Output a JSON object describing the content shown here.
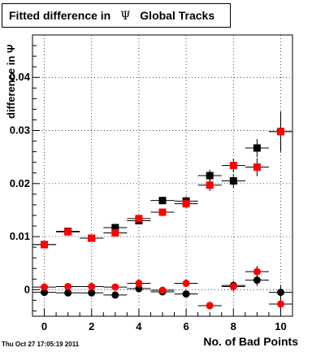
{
  "header": {
    "title_prefix": "Fitted difference in",
    "title_symbol": "Ψ",
    "title_suffix": "Global Tracks"
  },
  "footer": {
    "timestamp": "Thu Oct 27 17:05:19 2011"
  },
  "chart_data": {
    "type": "scatter",
    "title": "Fitted difference in Ψ Global Tracks",
    "xlabel": "No. of Bad Points",
    "ylabel": "difference in Ψ",
    "xlim": [
      -0.5,
      10.5
    ],
    "ylim": [
      -0.005,
      0.048
    ],
    "xticks": [
      0,
      2,
      4,
      6,
      8,
      10
    ],
    "yticks": [
      0,
      0.01,
      0.02,
      0.03,
      0.04
    ],
    "ytick_labels": [
      "0",
      "0.01",
      "0.02",
      "0.03",
      "0.04"
    ],
    "grid": true,
    "series": [
      {
        "marker": "square",
        "color": "#000000",
        "x": [
          0,
          1,
          2,
          3,
          4,
          5,
          6,
          7,
          8,
          9,
          10
        ],
        "y": [
          0.0085,
          0.011,
          0.0097,
          0.0117,
          0.013,
          0.0168,
          0.0167,
          0.0215,
          0.0205,
          0.0267,
          0.0298
        ],
        "yerr": [
          0.0004,
          0.0004,
          0.0004,
          0.0006,
          0.0006,
          0.0007,
          0.0009,
          0.0011,
          0.0013,
          0.0017,
          0.0038
        ]
      },
      {
        "marker": "square",
        "color": "#ff0000",
        "x": [
          0,
          1,
          2,
          3,
          4,
          5,
          6,
          7,
          8,
          9,
          10
        ],
        "y": [
          0.0085,
          0.0109,
          0.0097,
          0.0107,
          0.0134,
          0.0146,
          0.0162,
          0.0197,
          0.0234,
          0.0231,
          0.0298
        ],
        "yerr": [
          0.0004,
          0.0004,
          0.0004,
          0.0006,
          0.0006,
          0.0007,
          0.0009,
          0.0011,
          0.0013,
          0.0017,
          0.0038
        ]
      },
      {
        "marker": "circle",
        "color": "#000000",
        "x": [
          0,
          1,
          2,
          3,
          4,
          5,
          6,
          7,
          8,
          9,
          10
        ],
        "y": [
          -0.0005,
          -0.0006,
          -0.0006,
          -0.001,
          0.0002,
          -0.0004,
          -0.0008,
          -0.003,
          0.0008,
          0.0018,
          -0.0005
        ],
        "yerr": [
          0.0003,
          0.0003,
          0.0003,
          0.0004,
          0.0005,
          0.0005,
          0.0006,
          0.0007,
          0.0009,
          0.0011,
          0.0014
        ]
      },
      {
        "marker": "circle",
        "color": "#ff0000",
        "x": [
          0,
          1,
          2,
          3,
          4,
          5,
          6,
          7,
          8,
          9,
          10
        ],
        "y": [
          0.0005,
          0.0006,
          0.0006,
          0.0005,
          0.0012,
          -0.0001,
          0.0012,
          -0.003,
          0.0006,
          0.0034,
          -0.0027
        ],
        "yerr": [
          0.0003,
          0.0003,
          0.0003,
          0.0004,
          0.0005,
          0.0005,
          0.0006,
          0.0007,
          0.0009,
          0.0011,
          0.0014
        ]
      }
    ]
  }
}
